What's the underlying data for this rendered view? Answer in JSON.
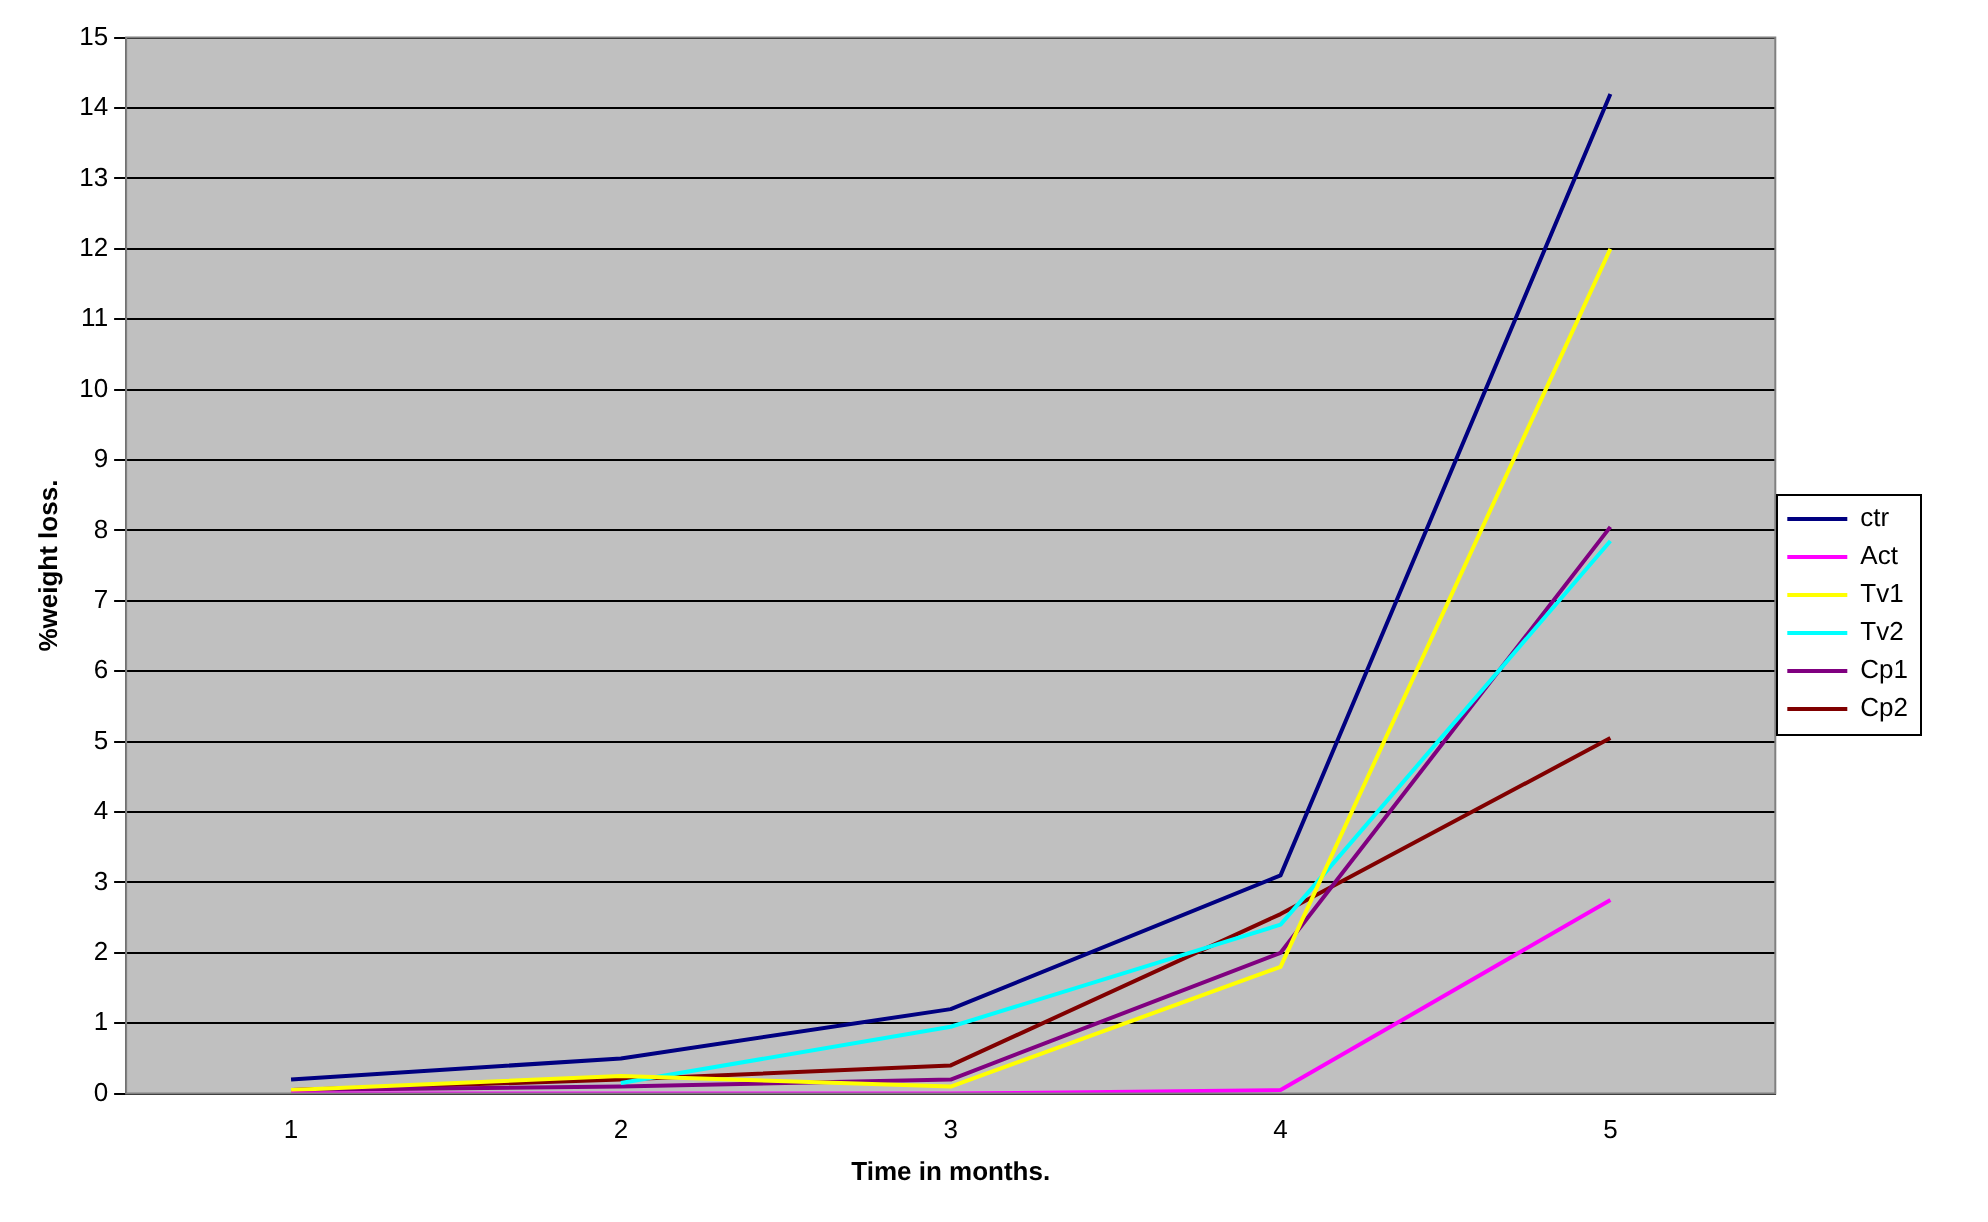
{
  "chart_data": {
    "type": "line",
    "xlabel": "Time in months.",
    "ylabel": "%weight loss.",
    "categories": [
      "1",
      "2",
      "3",
      "4",
      "5"
    ],
    "ylim": [
      0,
      15
    ],
    "yticks": [
      0,
      1,
      2,
      3,
      4,
      5,
      6,
      7,
      8,
      9,
      10,
      11,
      12,
      13,
      14,
      15
    ],
    "grid": "y",
    "legend": "right",
    "marker": "none",
    "line_style": "solid",
    "series": [
      {
        "name": "ctr",
        "color": "#000080",
        "values": [
          0.2,
          0.5,
          1.2,
          3.1,
          14.2
        ]
      },
      {
        "name": "Act",
        "color": "#ff00ff",
        "values": [
          0,
          0,
          0,
          0.05,
          2.75
        ]
      },
      {
        "name": "Tv1",
        "color": "#ffff00",
        "values": [
          0.05,
          0.25,
          0.1,
          1.8,
          12
        ]
      },
      {
        "name": "Tv2",
        "color": "#00ffff",
        "values": [
          null,
          0.15,
          0.95,
          2.4,
          7.85
        ]
      },
      {
        "name": "Cp1",
        "color": "#800080",
        "values": [
          0.05,
          0.1,
          0.2,
          2.0,
          8.05
        ]
      },
      {
        "name": "Cp2",
        "color": "#800000",
        "values": [
          0.05,
          0.2,
          0.4,
          2.55,
          5.05
        ]
      }
    ]
  }
}
